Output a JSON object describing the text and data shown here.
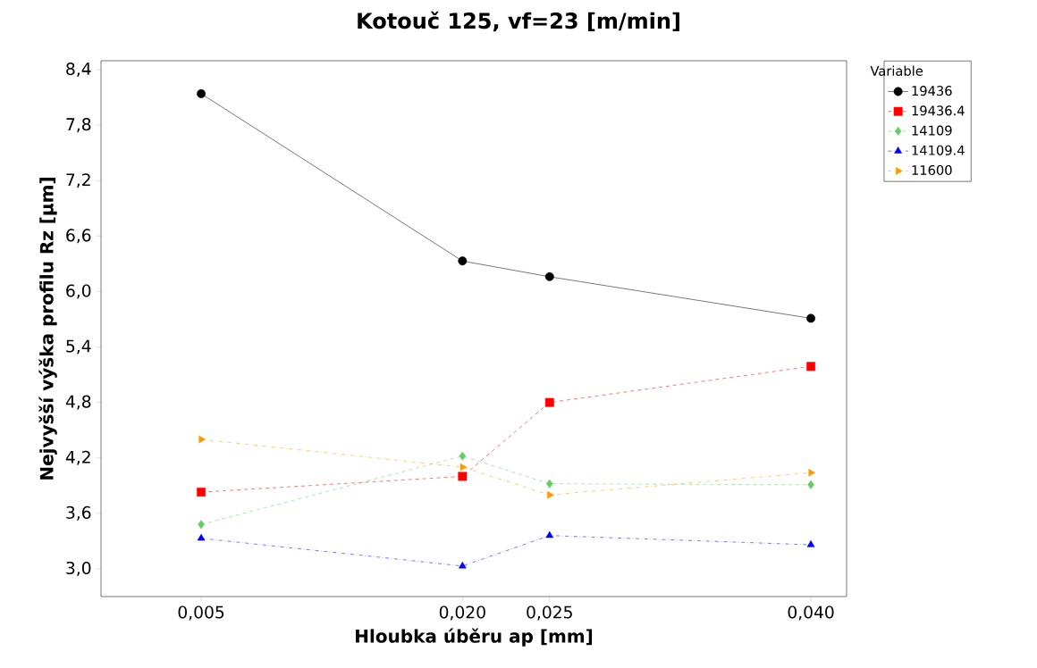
{
  "chart_data": {
    "type": "line",
    "title": "Kotouč 125, vf=23 [m/min]",
    "xlabel": "Hloubka úběru ap [mm]",
    "ylabel": "Nejvyšší výška profilu Rz [µm]",
    "legend_title": "Variable",
    "legend": "right",
    "grid": false,
    "x": [
      0.005,
      0.02,
      0.025,
      0.04
    ],
    "xlim": [
      -0.00075,
      0.04205
    ],
    "xticks": [
      {
        "value": 0.005,
        "label": "0,005"
      },
      {
        "value": 0.02,
        "label": "0,020"
      },
      {
        "value": 0.025,
        "label": "0,025"
      },
      {
        "value": 0.04,
        "label": "0,040"
      }
    ],
    "ylim": [
      2.7,
      8.497
    ],
    "yticks": [
      {
        "value": 3.0,
        "label": "3,0"
      },
      {
        "value": 3.6,
        "label": "3,6"
      },
      {
        "value": 4.2,
        "label": "4,2"
      },
      {
        "value": 4.8,
        "label": "4,8"
      },
      {
        "value": 5.4,
        "label": "5,4"
      },
      {
        "value": 6.0,
        "label": "6,0"
      },
      {
        "value": 6.6,
        "label": "6,6"
      },
      {
        "value": 7.2,
        "label": "7,2"
      },
      {
        "value": 7.8,
        "label": "7,8"
      },
      {
        "value": 8.4,
        "label": "8,4"
      }
    ],
    "series": [
      {
        "name": "19436",
        "color": "#000000",
        "marker": "circle",
        "line_style": "solid",
        "values": [
          8.14,
          6.33,
          6.16,
          5.71
        ]
      },
      {
        "name": "19436.4",
        "color": "#ff0000",
        "marker": "square",
        "line_style": "dashed",
        "values": [
          3.83,
          4.0,
          4.8,
          5.19
        ]
      },
      {
        "name": "14109",
        "color": "#66cc66",
        "marker": "diamond",
        "line_style": "dashed",
        "values": [
          3.48,
          4.22,
          3.92,
          3.91
        ]
      },
      {
        "name": "14109.4",
        "color": "#0000ff",
        "marker": "triangle",
        "line_style": "dashdot",
        "values": [
          3.33,
          3.03,
          3.36,
          3.26
        ]
      },
      {
        "name": "11600",
        "color": "#ff9900",
        "marker": "triangle-right",
        "line_style": "dashdot",
        "values": [
          4.4,
          4.1,
          3.8,
          4.04
        ]
      }
    ]
  }
}
